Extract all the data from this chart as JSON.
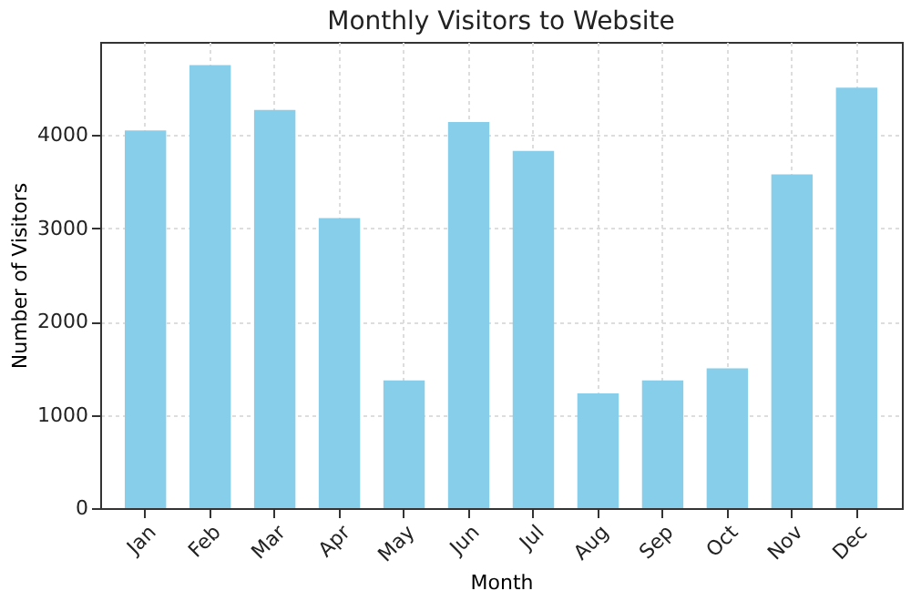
{
  "chart_data": {
    "type": "bar",
    "title": "Monthly Visitors to Website",
    "xlabel": "Month",
    "ylabel": "Number of Visitors",
    "categories": [
      "Jan",
      "Feb",
      "Mar",
      "Apr",
      "May",
      "Jun",
      "Jul",
      "Aug",
      "Sep",
      "Oct",
      "Nov",
      "Dec"
    ],
    "values": [
      4050,
      4750,
      4270,
      3110,
      1370,
      4140,
      3830,
      1230,
      1370,
      1500,
      3580,
      4510
    ],
    "color": "#87ceeb",
    "ylim": [
      0,
      5000
    ],
    "yticks": [
      0,
      1000,
      2000,
      3000,
      4000
    ],
    "grid": true
  }
}
